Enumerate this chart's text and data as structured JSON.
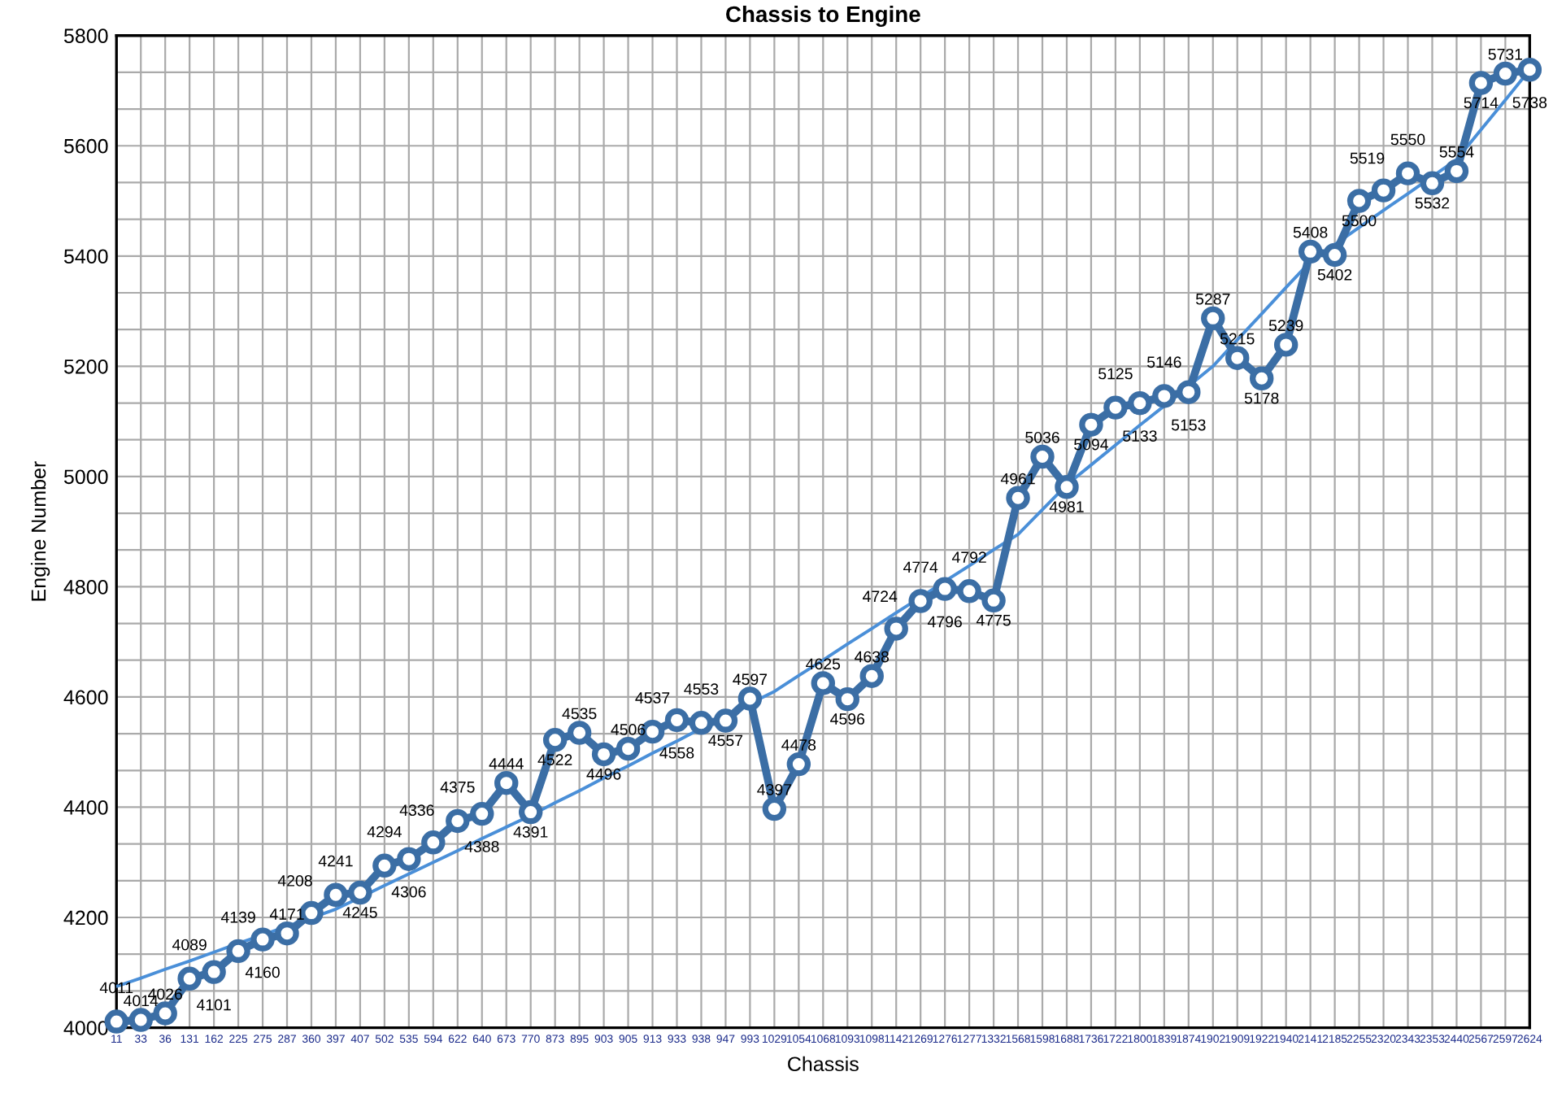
{
  "chart_data": {
    "type": "line",
    "title": "Chassis to Engine",
    "xlabel": "Chassis",
    "ylabel": "Engine Number",
    "categories": [
      "11",
      "33",
      "36",
      "131",
      "162",
      "225",
      "275",
      "287",
      "360",
      "397",
      "407",
      "502",
      "535",
      "594",
      "622",
      "640",
      "673",
      "770",
      "873",
      "895",
      "903",
      "905",
      "913",
      "933",
      "938",
      "947",
      "993",
      "1029",
      "1054",
      "1068",
      "1093",
      "1098",
      "1142",
      "1269",
      "1276",
      "1277",
      "1332",
      "1568",
      "1598",
      "1688",
      "1736",
      "1722",
      "1800",
      "1839",
      "1874",
      "1902",
      "1909",
      "1922",
      "1940",
      "2141",
      "2185",
      "2255",
      "2320",
      "2343",
      "2353",
      "2440",
      "2567",
      "2597",
      "2624"
    ],
    "series": [
      {
        "color": "#3b6ea5",
        "marker": "circle",
        "data_labels": true,
        "values": [
          4011,
          4014,
          4026,
          4089,
          4101,
          4139,
          4160,
          4171,
          4208,
          4241,
          4245,
          4294,
          4306,
          4336,
          4375,
          4388,
          4444,
          4391,
          4522,
          4535,
          4496,
          4506,
          4537,
          4558,
          4553,
          4557,
          4597,
          4397,
          4478,
          4625,
          4596,
          4638,
          4724,
          4774,
          4796,
          4792,
          4775,
          4961,
          5036,
          4981,
          5094,
          5125,
          5133,
          5146,
          5153,
          5287,
          5215,
          5178,
          5239,
          5408,
          5402,
          5500,
          5519,
          5550,
          5532,
          5554,
          5714,
          5731,
          5738
        ]
      },
      {
        "color": "#4a8fd8",
        "marker": "none",
        "values": [
          4075,
          4090,
          4106,
          4121,
          4137,
          4153,
          4168,
          4184,
          4199,
          4215,
          4236,
          4258,
          4279,
          4300,
          4321,
          4343,
          4364,
          4385,
          4408,
          4430,
          4453,
          4475,
          4498,
          4520,
          4543,
          4565,
          4588,
          4610,
          4639,
          4667,
          4696,
          4724,
          4753,
          4781,
          4810,
          4838,
          4867,
          4895,
          4940,
          4985,
          5021,
          5057,
          5093,
          5128,
          5164,
          5200,
          5248,
          5295,
          5343,
          5390,
          5421,
          5452,
          5483,
          5513,
          5544,
          5575,
          5629,
          5683,
          5738
        ]
      }
    ],
    "ylim": [
      4000,
      5800
    ],
    "yticks": [
      4000,
      {
        "value": 4066.7,
        "label": null
      },
      {
        "value": 4133.3,
        "label": null
      },
      4200,
      {
        "value": 4266.7,
        "label": null
      },
      {
        "value": 4333.3,
        "label": null
      },
      4400,
      {
        "value": 4466.7,
        "label": null
      },
      {
        "value": 4533.3,
        "label": null
      },
      4600,
      {
        "value": 4666.7,
        "label": null
      },
      {
        "value": 4733.3,
        "label": null
      },
      4800,
      {
        "value": 4866.7,
        "label": null
      },
      {
        "value": 4933.3,
        "label": null
      },
      5000,
      {
        "value": 5066.7,
        "label": null
      },
      {
        "value": 5133.3,
        "label": null
      },
      5200,
      {
        "value": 5266.7,
        "label": null
      },
      {
        "value": 5333.3,
        "label": null
      },
      5400,
      {
        "value": 5466.7,
        "label": null
      },
      {
        "value": 5533.3,
        "label": null
      },
      5600,
      {
        "value": 5666.7,
        "label": null
      },
      {
        "value": 5733.3,
        "label": null
      },
      5800
    ],
    "grid": true
  }
}
